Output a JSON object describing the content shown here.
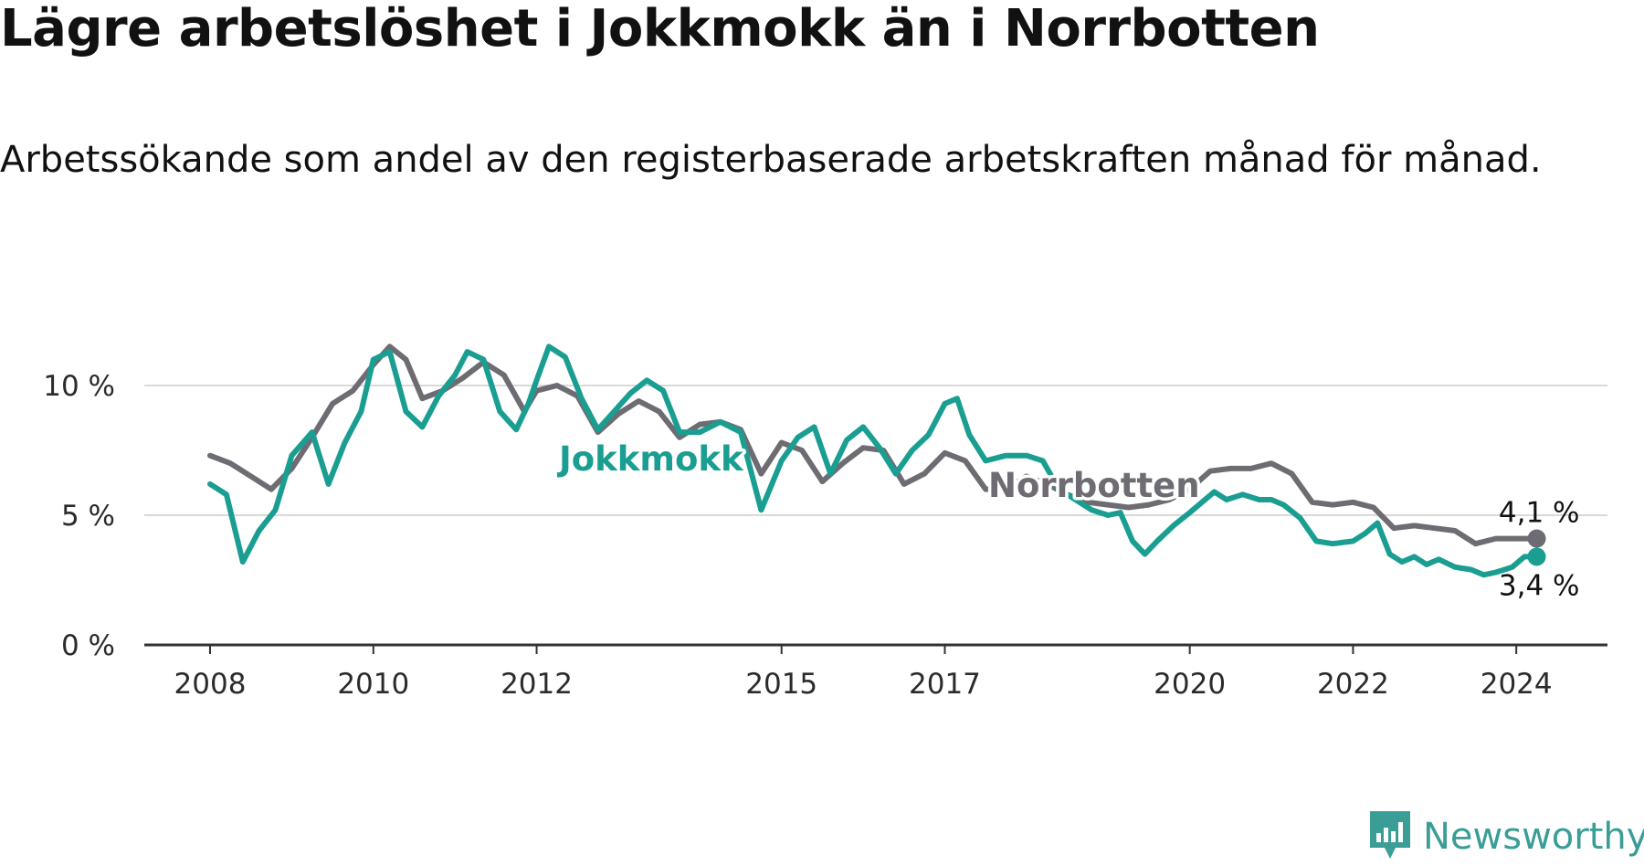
{
  "title": "Lägre arbetslöshet i Jokkmokk än i Norrbotten",
  "subtitle": "Arbetssökande som andel av den registerbaserade arbetskraften månad för månad.",
  "brand": {
    "name": "Newsworthy",
    "icon": "newsworthy-logo-icon",
    "color": "#3a9e96"
  },
  "chart_data": {
    "type": "line",
    "title": "Lägre arbetslöshet i Jokkmokk än i Norrbotten",
    "subtitle": "Arbetssökande som andel av den registerbaserade arbetskraften månad för månad.",
    "xlabel": "",
    "ylabel": "",
    "xlim": [
      2008.0,
      2024.3
    ],
    "ylim": [
      0,
      11.5
    ],
    "x_ticks": [
      2008,
      2010,
      2012,
      2015,
      2017,
      2020,
      2022,
      2024
    ],
    "y_ticks": [
      {
        "value": 0,
        "label": "0 %"
      },
      {
        "value": 5,
        "label": "5 %"
      },
      {
        "value": 10,
        "label": "10 %"
      }
    ],
    "grid": "horizontal",
    "legend": "direct-labels",
    "series": [
      {
        "name": "Norrbotten",
        "color": "#6e6c72",
        "end_label": "4,1 %",
        "points": [
          [
            2008.0,
            7.3
          ],
          [
            2008.25,
            7.0
          ],
          [
            2008.5,
            6.5
          ],
          [
            2008.75,
            6.0
          ],
          [
            2009.0,
            6.8
          ],
          [
            2009.25,
            8.0
          ],
          [
            2009.5,
            9.3
          ],
          [
            2009.75,
            9.8
          ],
          [
            2010.0,
            10.8
          ],
          [
            2010.2,
            11.5
          ],
          [
            2010.4,
            11.0
          ],
          [
            2010.6,
            9.5
          ],
          [
            2010.85,
            9.8
          ],
          [
            2011.1,
            10.3
          ],
          [
            2011.35,
            10.9
          ],
          [
            2011.6,
            10.4
          ],
          [
            2011.85,
            9.0
          ],
          [
            2012.0,
            9.8
          ],
          [
            2012.25,
            10.0
          ],
          [
            2012.5,
            9.6
          ],
          [
            2012.75,
            8.2
          ],
          [
            2013.0,
            8.9
          ],
          [
            2013.25,
            9.4
          ],
          [
            2013.5,
            9.0
          ],
          [
            2013.75,
            8.0
          ],
          [
            2014.0,
            8.5
          ],
          [
            2014.25,
            8.6
          ],
          [
            2014.5,
            8.3
          ],
          [
            2014.75,
            6.6
          ],
          [
            2015.0,
            7.8
          ],
          [
            2015.25,
            7.5
          ],
          [
            2015.5,
            6.3
          ],
          [
            2015.75,
            7.0
          ],
          [
            2016.0,
            7.6
          ],
          [
            2016.25,
            7.5
          ],
          [
            2016.5,
            6.2
          ],
          [
            2016.75,
            6.6
          ],
          [
            2017.0,
            7.4
          ],
          [
            2017.25,
            7.1
          ],
          [
            2017.5,
            6.0
          ],
          [
            2017.75,
            6.0
          ],
          [
            2018.0,
            6.5
          ],
          [
            2018.25,
            6.2
          ],
          [
            2018.5,
            5.8
          ],
          [
            2018.75,
            5.5
          ],
          [
            2019.0,
            5.4
          ],
          [
            2019.25,
            5.3
          ],
          [
            2019.5,
            5.4
          ],
          [
            2019.75,
            5.6
          ],
          [
            2020.0,
            6.0
          ],
          [
            2020.25,
            6.7
          ],
          [
            2020.5,
            6.8
          ],
          [
            2020.75,
            6.8
          ],
          [
            2021.0,
            7.0
          ],
          [
            2021.25,
            6.6
          ],
          [
            2021.5,
            5.5
          ],
          [
            2021.75,
            5.4
          ],
          [
            2022.0,
            5.5
          ],
          [
            2022.25,
            5.3
          ],
          [
            2022.5,
            4.5
          ],
          [
            2022.75,
            4.6
          ],
          [
            2023.0,
            4.5
          ],
          [
            2023.25,
            4.4
          ],
          [
            2023.5,
            3.9
          ],
          [
            2023.75,
            4.1
          ],
          [
            2024.0,
            4.1
          ],
          [
            2024.25,
            4.1
          ]
        ]
      },
      {
        "name": "Jokkmokk",
        "color": "#1a9e91",
        "end_label": "3,4 %",
        "points": [
          [
            2008.0,
            6.2
          ],
          [
            2008.2,
            5.8
          ],
          [
            2008.4,
            3.2
          ],
          [
            2008.6,
            4.4
          ],
          [
            2008.8,
            5.2
          ],
          [
            2009.0,
            7.3
          ],
          [
            2009.25,
            8.2
          ],
          [
            2009.45,
            6.2
          ],
          [
            2009.65,
            7.8
          ],
          [
            2009.85,
            9.0
          ],
          [
            2010.0,
            11.0
          ],
          [
            2010.2,
            11.3
          ],
          [
            2010.4,
            9.0
          ],
          [
            2010.6,
            8.4
          ],
          [
            2010.8,
            9.6
          ],
          [
            2011.0,
            10.4
          ],
          [
            2011.15,
            11.3
          ],
          [
            2011.35,
            11.0
          ],
          [
            2011.55,
            9.0
          ],
          [
            2011.75,
            8.3
          ],
          [
            2011.9,
            9.3
          ],
          [
            2012.0,
            10.2
          ],
          [
            2012.15,
            11.5
          ],
          [
            2012.35,
            11.1
          ],
          [
            2012.55,
            9.5
          ],
          [
            2012.75,
            8.3
          ],
          [
            2012.95,
            9.0
          ],
          [
            2013.15,
            9.7
          ],
          [
            2013.35,
            10.2
          ],
          [
            2013.55,
            9.8
          ],
          [
            2013.75,
            8.2
          ],
          [
            2014.0,
            8.2
          ],
          [
            2014.25,
            8.6
          ],
          [
            2014.5,
            8.2
          ],
          [
            2014.75,
            5.2
          ],
          [
            2015.0,
            7.1
          ],
          [
            2015.2,
            8.0
          ],
          [
            2015.4,
            8.4
          ],
          [
            2015.6,
            6.6
          ],
          [
            2015.8,
            7.9
          ],
          [
            2016.0,
            8.4
          ],
          [
            2016.2,
            7.6
          ],
          [
            2016.4,
            6.6
          ],
          [
            2016.6,
            7.5
          ],
          [
            2016.8,
            8.1
          ],
          [
            2017.0,
            9.3
          ],
          [
            2017.15,
            9.5
          ],
          [
            2017.3,
            8.1
          ],
          [
            2017.5,
            7.1
          ],
          [
            2017.75,
            7.3
          ],
          [
            2018.0,
            7.3
          ],
          [
            2018.2,
            7.1
          ],
          [
            2018.4,
            6.0
          ],
          [
            2018.6,
            5.6
          ],
          [
            2018.8,
            5.2
          ],
          [
            2019.0,
            5.0
          ],
          [
            2019.15,
            5.1
          ],
          [
            2019.3,
            4.0
          ],
          [
            2019.45,
            3.5
          ],
          [
            2019.6,
            4.0
          ],
          [
            2019.8,
            4.6
          ],
          [
            2020.0,
            5.1
          ],
          [
            2020.15,
            5.5
          ],
          [
            2020.3,
            5.9
          ],
          [
            2020.45,
            5.6
          ],
          [
            2020.65,
            5.8
          ],
          [
            2020.85,
            5.6
          ],
          [
            2021.0,
            5.6
          ],
          [
            2021.15,
            5.4
          ],
          [
            2021.35,
            4.9
          ],
          [
            2021.55,
            4.0
          ],
          [
            2021.75,
            3.9
          ],
          [
            2022.0,
            4.0
          ],
          [
            2022.15,
            4.3
          ],
          [
            2022.3,
            4.7
          ],
          [
            2022.45,
            3.5
          ],
          [
            2022.6,
            3.2
          ],
          [
            2022.75,
            3.4
          ],
          [
            2022.9,
            3.1
          ],
          [
            2023.05,
            3.3
          ],
          [
            2023.25,
            3.0
          ],
          [
            2023.45,
            2.9
          ],
          [
            2023.6,
            2.7
          ],
          [
            2023.75,
            2.8
          ],
          [
            2023.95,
            3.0
          ],
          [
            2024.1,
            3.4
          ],
          [
            2024.25,
            3.4
          ]
        ]
      }
    ],
    "annotations": [
      "Jokkmokk",
      "Norrbotten",
      "4,1 %",
      "3,4 %"
    ]
  }
}
